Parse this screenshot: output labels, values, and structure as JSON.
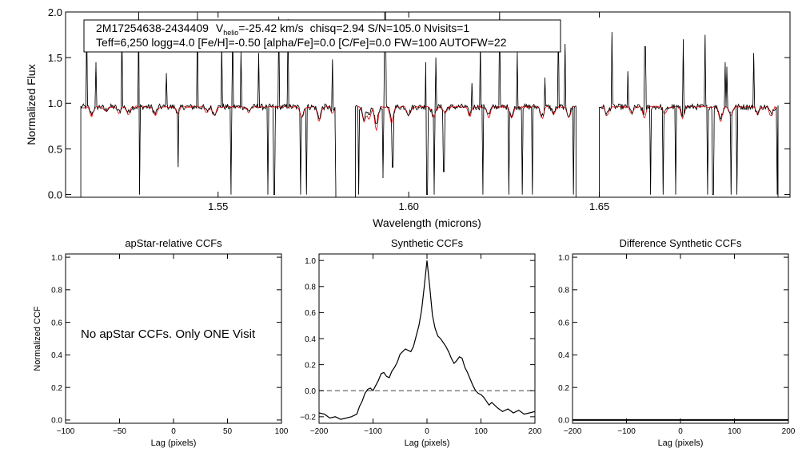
{
  "colors": {
    "observed": "#000000",
    "model": "#e8191c",
    "zero_line": "#444444"
  },
  "chart_data": [
    {
      "id": "spectrum",
      "type": "line",
      "title": "",
      "annotation": {
        "line1": {
          "star": "2M17254638-2434409",
          "vhelio_prefix": "V",
          "vhelio_sub": "helio",
          "vhelio_value": "=-25.42 km/s",
          "rest": "chisq=2.94  S/N=105.0  Nvisits=1"
        },
        "line2": "Teff=6,250 logg=4.0 [Fe/H]=-0.50 [alpha/Fe]=0.0 [C/Fe]=0.0 FW=100 AUTOFW=22"
      },
      "xlabel": "Wavelength (microns)",
      "ylabel": "Normalized Flux",
      "xlim": [
        1.51,
        1.7
      ],
      "ylim": [
        -0.03,
        2.0
      ],
      "xticks": [
        {
          "v": 1.55,
          "label": "1.55"
        },
        {
          "v": 1.6,
          "label": "1.60"
        },
        {
          "v": 1.65,
          "label": "1.65"
        }
      ],
      "yticks": [
        {
          "v": 0.0,
          "label": "0.0"
        },
        {
          "v": 0.5,
          "label": "0.5"
        },
        {
          "v": 1.0,
          "label": "1.0"
        },
        {
          "v": 1.5,
          "label": "1.5"
        },
        {
          "v": 2.0,
          "label": "2.0"
        }
      ],
      "chips": [
        [
          1.514,
          1.581
        ],
        [
          1.586,
          1.644
        ],
        [
          1.65,
          1.697
        ]
      ],
      "series": [
        {
          "role": "observed",
          "continuum": 0.96,
          "spikes_up": [
            [
              1.5155,
              1.88
            ],
            [
              1.518,
              1.45
            ],
            [
              1.5248,
              1.78
            ],
            [
              1.5292,
              2.0
            ],
            [
              1.5365,
              1.33
            ],
            [
              1.5445,
              2.0
            ],
            [
              1.551,
              1.65
            ],
            [
              1.5538,
              1.86
            ],
            [
              1.5561,
              1.58
            ],
            [
              1.5606,
              1.55
            ],
            [
              1.563,
              2.0
            ],
            [
              1.5659,
              1.95
            ],
            [
              1.5683,
              1.92
            ],
            [
              1.5731,
              1.52
            ],
            [
              1.58,
              1.48
            ],
            [
              1.5938,
              2.0
            ],
            [
              1.6045,
              1.45
            ],
            [
              1.6072,
              1.5
            ],
            [
              1.6165,
              1.22
            ],
            [
              1.6187,
              1.65
            ],
            [
              1.6238,
              2.0
            ],
            [
              1.6284,
              1.56
            ],
            [
              1.6357,
              1.28
            ],
            [
              1.6393,
              1.9
            ],
            [
              1.641,
              1.65
            ],
            [
              1.6444,
              1.9
            ],
            [
              1.6533,
              1.78
            ],
            [
              1.6575,
              1.35
            ],
            [
              1.662,
              1.62
            ],
            [
              1.672,
              1.7
            ],
            [
              1.6778,
              1.75
            ],
            [
              1.683,
              1.45
            ],
            [
              1.6835,
              1.4
            ],
            [
              1.6905,
              1.55
            ]
          ],
          "drops": [
            [
              1.5294,
              0.0
            ],
            [
              1.5395,
              0.3
            ],
            [
              1.5534,
              0.0
            ],
            [
              1.563,
              0.0
            ],
            [
              1.5647,
              0.0
            ],
            [
              1.5717,
              0.0
            ],
            [
              1.5732,
              0.0
            ],
            [
              1.581,
              0.0
            ],
            [
              1.5868,
              0.0
            ],
            [
              1.5932,
              0.18
            ],
            [
              1.5958,
              0.3
            ],
            [
              1.6048,
              0.0
            ],
            [
              1.6067,
              0.0
            ],
            [
              1.6092,
              0.25
            ],
            [
              1.6195,
              0.0
            ],
            [
              1.6262,
              0.0
            ],
            [
              1.6297,
              0.0
            ],
            [
              1.6325,
              0.0
            ],
            [
              1.6432,
              0.0
            ],
            [
              1.6484,
              0.0
            ],
            [
              1.6635,
              0.0
            ],
            [
              1.6668,
              0.0
            ],
            [
              1.67,
              0.0
            ],
            [
              1.6783,
              0.0
            ],
            [
              1.6798,
              0.0
            ],
            [
              1.6845,
              0.0
            ],
            [
              1.686,
              0.0
            ],
            [
              1.6967,
              0.0
            ]
          ]
        },
        {
          "role": "model",
          "continuum": 0.96,
          "absorptions": [
            [
              1.5168,
              0.86
            ],
            [
              1.5205,
              0.91
            ],
            [
              1.524,
              0.89
            ],
            [
              1.5265,
              0.88
            ],
            [
              1.5335,
              0.86
            ],
            [
              1.5395,
              0.89
            ],
            [
              1.547,
              0.9
            ],
            [
              1.549,
              0.86
            ],
            [
              1.558,
              0.9
            ],
            [
              1.572,
              0.84
            ],
            [
              1.5765,
              0.8
            ],
            [
              1.58,
              0.89
            ],
            [
              1.5883,
              0.8
            ],
            [
              1.5896,
              0.82
            ],
            [
              1.5915,
              0.7
            ],
            [
              1.5955,
              0.78
            ],
            [
              1.6,
              0.86
            ],
            [
              1.6065,
              0.84
            ],
            [
              1.6095,
              0.89
            ],
            [
              1.616,
              0.86
            ],
            [
              1.621,
              0.85
            ],
            [
              1.627,
              0.84
            ],
            [
              1.635,
              0.83
            ],
            [
              1.638,
              0.88
            ],
            [
              1.642,
              0.84
            ],
            [
              1.652,
              0.86
            ],
            [
              1.6585,
              0.88
            ],
            [
              1.6618,
              0.84
            ],
            [
              1.6672,
              0.88
            ],
            [
              1.6718,
              0.84
            ],
            [
              1.6818,
              0.8
            ],
            [
              1.6845,
              0.87
            ],
            [
              1.6915,
              0.88
            ],
            [
              1.695,
              0.86
            ]
          ]
        }
      ]
    },
    {
      "id": "apstar-ccf",
      "type": "line",
      "title": "apStar-relative CCFs",
      "message": "No apStar CCFs.  Only ONE Visit",
      "xlabel": "Lag (pixels)",
      "ylabel": "Normalized CCF",
      "xlim": [
        -100,
        100
      ],
      "ylim": [
        -0.02,
        1.02
      ],
      "xticks": [
        {
          "v": -100,
          "label": "-100"
        },
        {
          "v": -50,
          "label": "-50"
        },
        {
          "v": 0,
          "label": "0"
        },
        {
          "v": 50,
          "label": "50"
        },
        {
          "v": 100,
          "label": "100"
        }
      ],
      "yticks": [
        {
          "v": 0.0,
          "label": "0.0"
        },
        {
          "v": 0.2,
          "label": "0.2"
        },
        {
          "v": 0.4,
          "label": "0.4"
        },
        {
          "v": 0.6,
          "label": "0.6"
        },
        {
          "v": 0.8,
          "label": "0.8"
        },
        {
          "v": 1.0,
          "label": "1.0"
        }
      ],
      "series": []
    },
    {
      "id": "synthetic-ccf",
      "type": "line",
      "title": "Synthetic CCFs",
      "xlabel": "Lag (pixels)",
      "ylabel": "",
      "xlim": [
        -200,
        200
      ],
      "ylim": [
        -0.25,
        1.05
      ],
      "xticks": [
        {
          "v": -200,
          "label": "-200"
        },
        {
          "v": -100,
          "label": "-100"
        },
        {
          "v": 0,
          "label": "0"
        },
        {
          "v": 100,
          "label": "100"
        },
        {
          "v": 200,
          "label": "200"
        }
      ],
      "yticks": [
        {
          "v": -0.2,
          "label": "-0.2"
        },
        {
          "v": 0.0,
          "label": "0.0"
        },
        {
          "v": 0.2,
          "label": "0.2"
        },
        {
          "v": 0.4,
          "label": "0.4"
        },
        {
          "v": 0.6,
          "label": "0.6"
        },
        {
          "v": 0.8,
          "label": "0.8"
        },
        {
          "v": 1.0,
          "label": "1.0"
        }
      ],
      "reference_line": 0.0,
      "series": [
        {
          "role": "ccf",
          "x": [
            -200,
            -190,
            -180,
            -170,
            -160,
            -150,
            -140,
            -130,
            -125,
            -120,
            -115,
            -110,
            -105,
            -100,
            -95,
            -90,
            -85,
            -80,
            -75,
            -70,
            -65,
            -60,
            -55,
            -50,
            -45,
            -40,
            -35,
            -30,
            -25,
            -20,
            -15,
            -10,
            -5,
            0,
            5,
            10,
            15,
            20,
            25,
            30,
            35,
            40,
            45,
            50,
            55,
            60,
            65,
            70,
            75,
            80,
            85,
            90,
            95,
            100,
            105,
            110,
            115,
            120,
            130,
            140,
            150,
            160,
            170,
            180,
            190,
            200
          ],
          "y": [
            -0.17,
            -0.18,
            -0.21,
            -0.2,
            -0.22,
            -0.21,
            -0.2,
            -0.18,
            -0.12,
            -0.08,
            -0.02,
            0.01,
            0.02,
            0.0,
            0.04,
            0.08,
            0.13,
            0.14,
            0.11,
            0.1,
            0.15,
            0.18,
            0.22,
            0.28,
            0.3,
            0.32,
            0.31,
            0.3,
            0.34,
            0.42,
            0.5,
            0.62,
            0.8,
            1.0,
            0.8,
            0.58,
            0.48,
            0.42,
            0.4,
            0.37,
            0.34,
            0.3,
            0.25,
            0.21,
            0.23,
            0.26,
            0.25,
            0.18,
            0.14,
            0.09,
            0.04,
            0.0,
            -0.02,
            -0.03,
            -0.05,
            -0.08,
            -0.11,
            -0.09,
            -0.13,
            -0.16,
            -0.14,
            -0.17,
            -0.15,
            -0.18,
            -0.17,
            -0.16
          ]
        }
      ]
    },
    {
      "id": "difference-ccf",
      "type": "line",
      "title": "Difference Synthetic CCFs",
      "xlabel": "Lag (pixels)",
      "ylabel": "",
      "xlim": [
        -200,
        200
      ],
      "ylim": [
        -0.02,
        1.02
      ],
      "xticks": [
        {
          "v": -200,
          "label": "-200"
        },
        {
          "v": -100,
          "label": "-100"
        },
        {
          "v": 0,
          "label": "0"
        },
        {
          "v": 100,
          "label": "100"
        },
        {
          "v": 200,
          "label": "200"
        }
      ],
      "yticks": [
        {
          "v": 0.0,
          "label": "0.0"
        },
        {
          "v": 0.2,
          "label": "0.2"
        },
        {
          "v": 0.4,
          "label": "0.4"
        },
        {
          "v": 0.6,
          "label": "0.6"
        },
        {
          "v": 0.8,
          "label": "0.8"
        },
        {
          "v": 1.0,
          "label": "1.0"
        }
      ],
      "series": [
        {
          "role": "flat",
          "x": [
            -200,
            200
          ],
          "y": [
            0.0,
            0.0
          ]
        }
      ]
    }
  ]
}
